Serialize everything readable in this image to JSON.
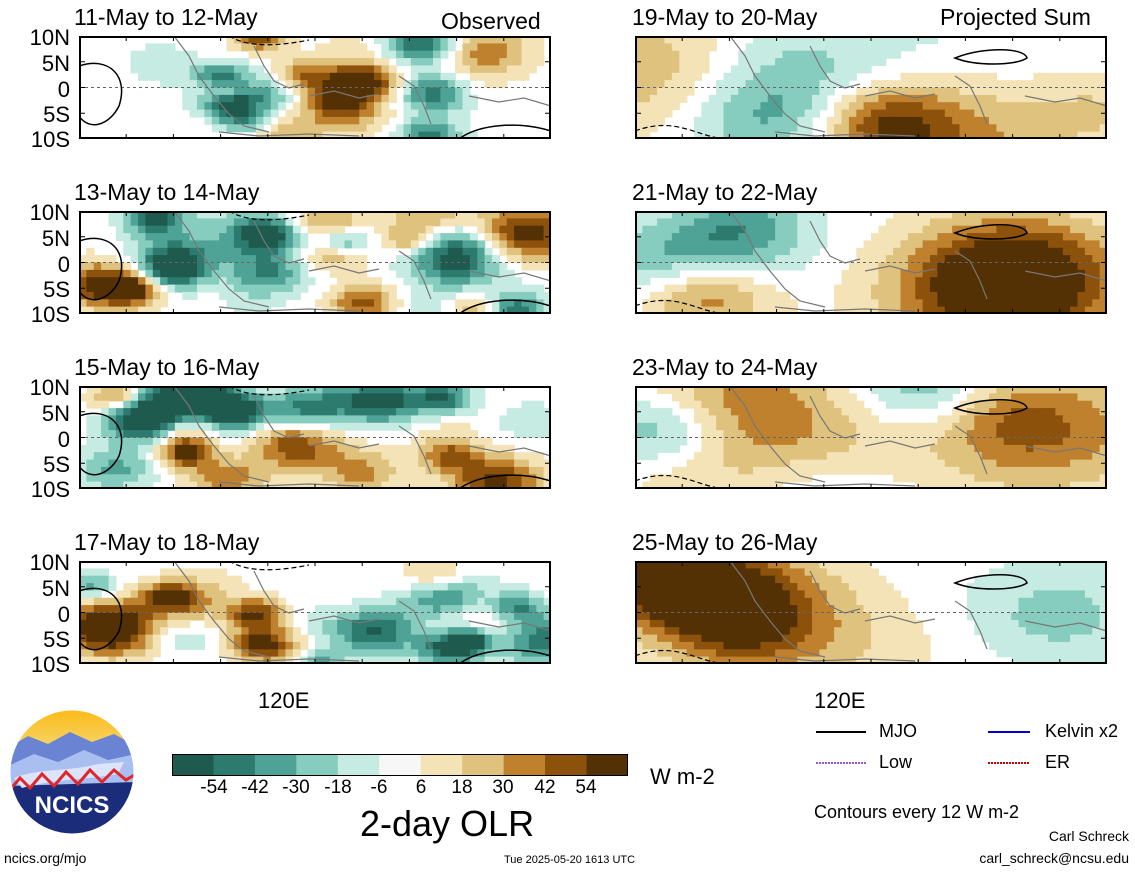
{
  "header": {
    "observed_label": "Observed",
    "projected_label": "Projected Sum"
  },
  "panels": {
    "observed": [
      "11-May to 12-May",
      "13-May to 14-May",
      "15-May to 16-May",
      "17-May to 18-May"
    ],
    "projected": [
      "19-May to 20-May",
      "21-May to 22-May",
      "23-May to 24-May",
      "25-May to 26-May"
    ]
  },
  "axes": {
    "lat_labels": [
      "10N",
      "5N",
      "0",
      "5S",
      "10S"
    ],
    "lon_label": "120E"
  },
  "colorbar": {
    "title": "2-day OLR",
    "units": "W m-2",
    "tick_labels": [
      "-54",
      "-42",
      "-30",
      "-18",
      "-6",
      "6",
      "18",
      "30",
      "42",
      "54"
    ],
    "colors": [
      "#1f5a4f",
      "#2d7a6e",
      "#4fa396",
      "#86cdbf",
      "#c6ebe2",
      "#f7f7f7",
      "#f4e3b6",
      "#dfc27d",
      "#bf812d",
      "#8c510a",
      "#543005"
    ]
  },
  "legend": {
    "items": [
      {
        "label": "MJO",
        "color": "#000000"
      },
      {
        "label": "Kelvin x2",
        "color": "#0000cc"
      },
      {
        "label": "Low",
        "color": "#9b59d6"
      },
      {
        "label": "ER",
        "color": "#cc0000"
      }
    ],
    "contour_note": "Contours every 12 W m-2"
  },
  "footer": {
    "logo_text": "NCICS",
    "url": "ncics.org/mjo",
    "timestamp": "Tue 2025-05-20 1613 UTC",
    "author": "Carl Schreck",
    "email": "carl_schreck@ncsu.edu"
  }
}
